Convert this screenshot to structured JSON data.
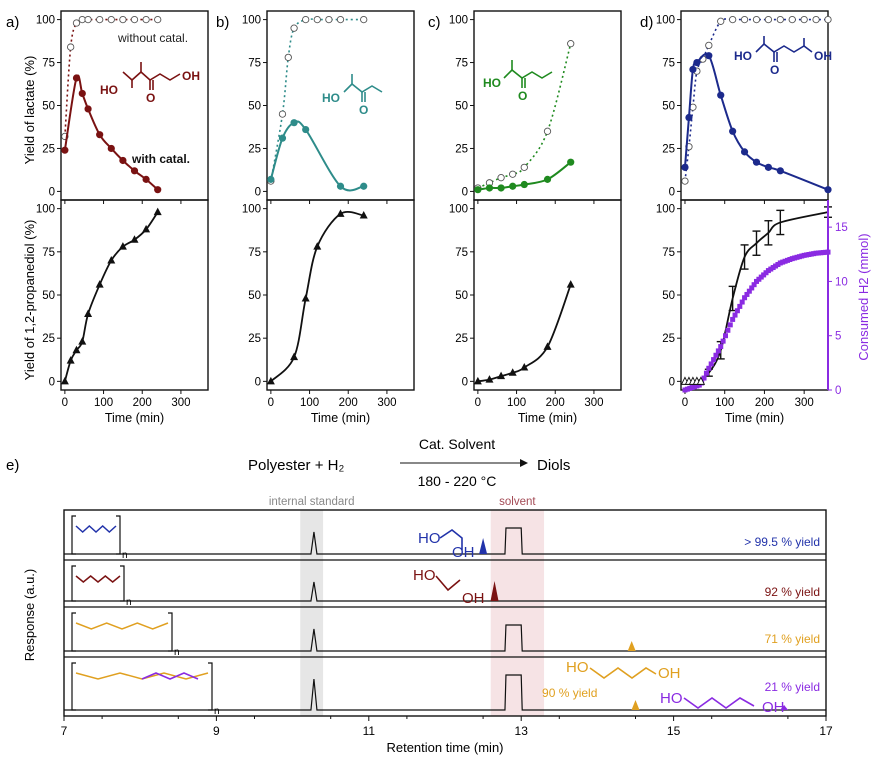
{
  "figure": {
    "panel_labels": [
      "a)",
      "b)",
      "c)",
      "d)",
      "e)"
    ],
    "ylabel_top": "Yield of lactate (%)",
    "ylabel_bottom": "Yield of 1,2-propanediol (%)",
    "ylabel_right": "Consumed H2 (mmol)",
    "xlabel_time": "Time (min)",
    "annot_without": "without catal.",
    "annot_with": "with catal.",
    "mol_labels": {
      "ho": "HO",
      "oh": "OH",
      "o": "O"
    },
    "colors": {
      "a": "#7a1212",
      "b": "#2e8c8a",
      "c": "#1f8a1f",
      "d": "#1c2a8c",
      "black": "#111111",
      "purple": "#8a2be2",
      "orange": "#e0a020",
      "blue": "#2233aa",
      "maroon": "#7a1212"
    }
  },
  "chart_data": [
    {
      "type": "line",
      "panel": "a) top",
      "xlim": [
        -10,
        370
      ],
      "ylim": [
        -5,
        105
      ],
      "xticks": [
        0,
        100,
        200,
        300
      ],
      "yticks": [
        0,
        25,
        50,
        75,
        100
      ],
      "series": [
        {
          "name": "without catal.",
          "style": "open-dotted",
          "x": [
            0,
            15,
            30,
            45,
            60,
            90,
            120,
            150,
            180,
            210,
            240
          ],
          "y": [
            32,
            84,
            98,
            100,
            100,
            100,
            100,
            100,
            100,
            100,
            100
          ]
        },
        {
          "name": "with catal.",
          "style": "filled-solid",
          "x": [
            0,
            30,
            45,
            60,
            90,
            120,
            150,
            180,
            210,
            240
          ],
          "y": [
            24,
            66,
            57,
            48,
            33,
            25,
            18,
            12,
            7,
            1
          ]
        }
      ]
    },
    {
      "type": "line",
      "panel": "b) top",
      "xlim": [
        -10,
        370
      ],
      "ylim": [
        -5,
        105
      ],
      "xticks": [
        0,
        100,
        200,
        300
      ],
      "yticks": [
        0,
        25,
        50,
        75,
        100
      ],
      "series": [
        {
          "name": "without catal.",
          "style": "open-dotted",
          "x": [
            0,
            30,
            45,
            60,
            90,
            120,
            150,
            180,
            240
          ],
          "y": [
            6,
            45,
            78,
            95,
            100,
            100,
            100,
            100,
            100
          ]
        },
        {
          "name": "with catal.",
          "style": "filled-solid",
          "x": [
            0,
            30,
            60,
            90,
            180,
            240
          ],
          "y": [
            7,
            31,
            40,
            36,
            3,
            3
          ]
        }
      ]
    },
    {
      "type": "line",
      "panel": "c) top",
      "xlim": [
        -10,
        370
      ],
      "ylim": [
        -5,
        105
      ],
      "xticks": [
        0,
        100,
        200,
        300
      ],
      "yticks": [
        0,
        25,
        50,
        75,
        100
      ],
      "series": [
        {
          "name": "without catal.",
          "style": "open-dotted",
          "x": [
            0,
            30,
            60,
            90,
            120,
            180,
            240
          ],
          "y": [
            2,
            5,
            8,
            10,
            14,
            35,
            86
          ]
        },
        {
          "name": "with catal.",
          "style": "filled-solid",
          "x": [
            0,
            30,
            60,
            90,
            120,
            180,
            240
          ],
          "y": [
            1,
            2,
            2,
            3,
            4,
            7,
            17
          ]
        }
      ]
    },
    {
      "type": "line",
      "panel": "d) top",
      "xlim": [
        -10,
        360
      ],
      "ylim": [
        -5,
        105
      ],
      "xticks": [
        0,
        100,
        200,
        300
      ],
      "yticks": [
        0,
        25,
        50,
        75,
        100
      ],
      "series": [
        {
          "name": "without catal.",
          "style": "open-dotted",
          "x": [
            0,
            10,
            20,
            30,
            45,
            60,
            90,
            120,
            150,
            180,
            210,
            240,
            270,
            300,
            330,
            360
          ],
          "y": [
            6,
            26,
            49,
            70,
            77,
            85,
            99,
            100,
            100,
            100,
            100,
            100,
            100,
            100,
            100,
            100
          ]
        },
        {
          "name": "with catal.",
          "style": "filled-solid",
          "x": [
            0,
            10,
            20,
            30,
            60,
            90,
            120,
            150,
            180,
            210,
            240,
            360
          ],
          "y": [
            14,
            43,
            71,
            75,
            79,
            56,
            35,
            23,
            17,
            14,
            12,
            1
          ]
        }
      ]
    },
    {
      "type": "line",
      "panel": "a) bottom",
      "xlim": [
        -10,
        370
      ],
      "ylim": [
        -5,
        105
      ],
      "xticks": [
        0,
        100,
        200,
        300
      ],
      "yticks": [
        0,
        25,
        50,
        75,
        100
      ],
      "series": [
        {
          "name": "1,2-propanediol",
          "style": "triangle-solid",
          "x": [
            0,
            15,
            30,
            45,
            60,
            90,
            120,
            150,
            180,
            210,
            240
          ],
          "y": [
            0,
            12,
            18,
            23,
            39,
            56,
            70,
            78,
            82,
            88,
            98
          ]
        }
      ]
    },
    {
      "type": "line",
      "panel": "b) bottom",
      "xlim": [
        -10,
        370
      ],
      "ylim": [
        -5,
        105
      ],
      "xticks": [
        0,
        100,
        200,
        300
      ],
      "yticks": [
        0,
        25,
        50,
        75,
        100
      ],
      "series": [
        {
          "name": "1,2-propanediol",
          "style": "triangle-solid",
          "x": [
            0,
            60,
            90,
            120,
            180,
            240
          ],
          "y": [
            0,
            14,
            48,
            78,
            97,
            96
          ]
        }
      ]
    },
    {
      "type": "line",
      "panel": "c) bottom",
      "xlim": [
        -10,
        370
      ],
      "ylim": [
        -5,
        105
      ],
      "xticks": [
        0,
        100,
        200,
        300
      ],
      "yticks": [
        0,
        25,
        50,
        75,
        100
      ],
      "series": [
        {
          "name": "1,2-propanediol",
          "style": "triangle-solid",
          "x": [
            0,
            30,
            60,
            90,
            120,
            180,
            240
          ],
          "y": [
            0,
            1,
            3,
            5,
            8,
            20,
            56
          ]
        }
      ]
    },
    {
      "type": "line",
      "panel": "d) bottom",
      "xlim": [
        -10,
        360
      ],
      "ylim": [
        -5,
        105
      ],
      "y2lim": [
        0,
        17.5
      ],
      "xticks": [
        0,
        100,
        200,
        300
      ],
      "yticks": [
        0,
        25,
        50,
        75,
        100
      ],
      "y2ticks": [
        0,
        5,
        10,
        15
      ],
      "series": [
        {
          "name": "1,2-propanediol",
          "style": "errorbar-solid",
          "x": [
            0,
            30,
            60,
            90,
            120,
            150,
            180,
            210,
            240,
            360
          ],
          "y": [
            0,
            0,
            5,
            18,
            48,
            72,
            80,
            86,
            92,
            98
          ],
          "err": [
            0,
            0,
            2,
            5,
            7,
            7,
            7,
            7,
            7,
            3
          ]
        },
        {
          "name": "Consumed H2 (mmol)",
          "style": "purple-step",
          "axis": "right",
          "x": [
            0,
            40,
            60,
            90,
            120,
            150,
            180,
            210,
            240,
            270,
            300,
            330,
            360
          ],
          "y": [
            0,
            0.5,
            2,
            4,
            6.5,
            8.5,
            10,
            11,
            11.7,
            12.1,
            12.4,
            12.6,
            12.7
          ]
        }
      ]
    },
    {
      "type": "line",
      "panel": "e) chromatogram",
      "title_scheme": {
        "reactant": "Polyester + H₂",
        "product": "Diols",
        "above_arrow": "Cat. Solvent",
        "below_arrow": "180 - 220 °C"
      },
      "xlabel": "Retention time (min)",
      "ylabel": "Response (a.u.)",
      "xlim": [
        7,
        17
      ],
      "xticks": [
        7,
        9,
        11,
        13,
        15,
        17
      ],
      "bands": [
        {
          "label": "internal standard",
          "x_range": [
            10.1,
            10.4
          ]
        },
        {
          "label": "solvent",
          "x_range": [
            12.6,
            13.3
          ]
        }
      ],
      "traces": [
        {
          "polymer": "PPG-like (propylene glycol ester)",
          "product": "1,2-propanediol",
          "peak_is_min": 10.28,
          "product_peak_min": 12.5,
          "solvent": true,
          "yield_label": "> 99.5 % yield",
          "color": "#2233aa"
        },
        {
          "polymer": "polyglycolide-like",
          "product": "ethylene glycol",
          "peak_is_min": 10.28,
          "product_peak_min": 12.65,
          "solvent": false,
          "yield_label": "92 % yield",
          "color": "#7a1212"
        },
        {
          "polymer": "poly(butylene succinate)",
          "product": "1,4-butanediol",
          "peak_is_min": 10.28,
          "product_peak_min": 14.45,
          "solvent": true,
          "yield_label": "71 % yield",
          "color": "#e0a020"
        },
        {
          "polymer": "poly(butylene adipate)",
          "product_1": "1,4-butanediol",
          "product_1_peak_min": 14.5,
          "product_1_yield": "90 % yield",
          "product_2": "1,6-hexanediol",
          "product_2_peak_min": 16.45,
          "yield_label": "21 % yield",
          "peak_is_min": 10.28,
          "solvent": true,
          "color_1": "#e0a020",
          "color_2": "#8a2be2"
        }
      ]
    }
  ]
}
